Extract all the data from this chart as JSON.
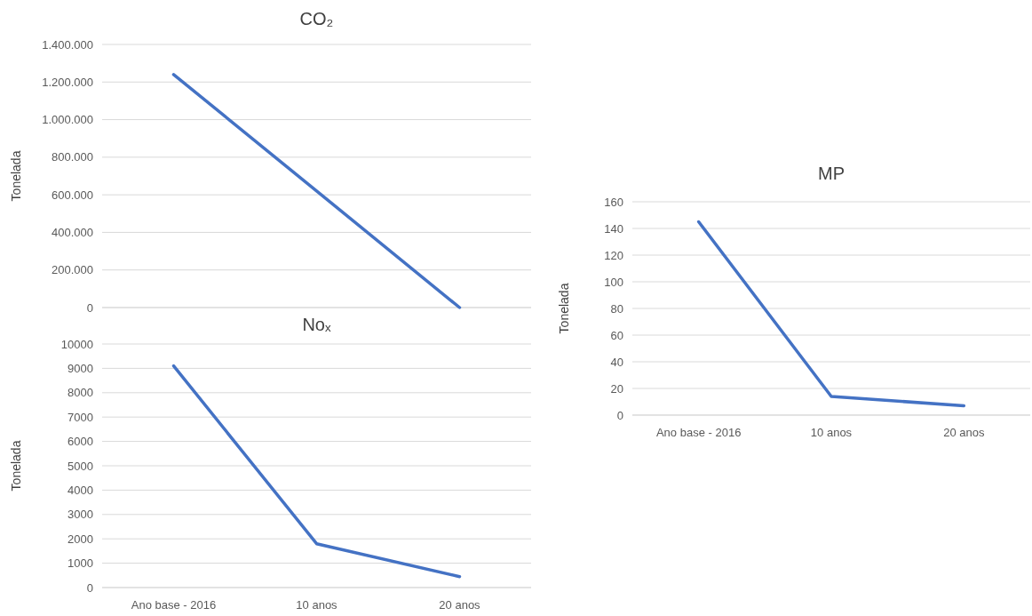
{
  "chart_data": [
    {
      "type": "line",
      "title": "CO₂",
      "ylabel": "Tonelada",
      "categories": [
        null,
        null,
        null
      ],
      "series": [
        {
          "color": "#4472c4",
          "values": [
            1240000,
            620000,
            0
          ]
        }
      ],
      "ylim": [
        0,
        1400000
      ],
      "yticks": [
        0,
        {
          "value": 200000,
          "label": "200.000"
        },
        {
          "value": 400000,
          "label": "400.000"
        },
        {
          "value": 600000,
          "label": "600.000"
        },
        {
          "value": 800000,
          "label": "800.000"
        },
        {
          "value": 1000000,
          "label": "1.000.000"
        },
        {
          "value": 1200000,
          "label": "1.200.000"
        },
        {
          "value": 1400000,
          "label": "1.400.000"
        }
      ],
      "grid": "y",
      "marker": "none",
      "line_style": "solid"
    },
    {
      "type": "line",
      "title": "Noₓ",
      "ylabel": "Tonelada",
      "categories": [
        "Ano base - 2016",
        "10 anos",
        "20 anos"
      ],
      "series": [
        {
          "color": "#4472c4",
          "values": [
            9100,
            1800,
            450
          ]
        }
      ],
      "ylim": [
        0,
        10000
      ],
      "yticks": [
        0,
        1000,
        2000,
        3000,
        4000,
        5000,
        6000,
        7000,
        8000,
        9000,
        10000
      ],
      "grid": "y",
      "marker": "none",
      "line_style": "solid"
    },
    {
      "type": "line",
      "title": "MP",
      "ylabel": "Tonelada",
      "categories": [
        "Ano base - 2016",
        "10 anos",
        "20 anos"
      ],
      "series": [
        {
          "color": "#4472c4",
          "values": [
            145,
            14,
            7
          ]
        }
      ],
      "ylim": [
        0,
        160
      ],
      "yticks": [
        0,
        20,
        40,
        60,
        80,
        100,
        120,
        140,
        160
      ],
      "grid": "y",
      "marker": "none",
      "line_style": "solid"
    }
  ]
}
